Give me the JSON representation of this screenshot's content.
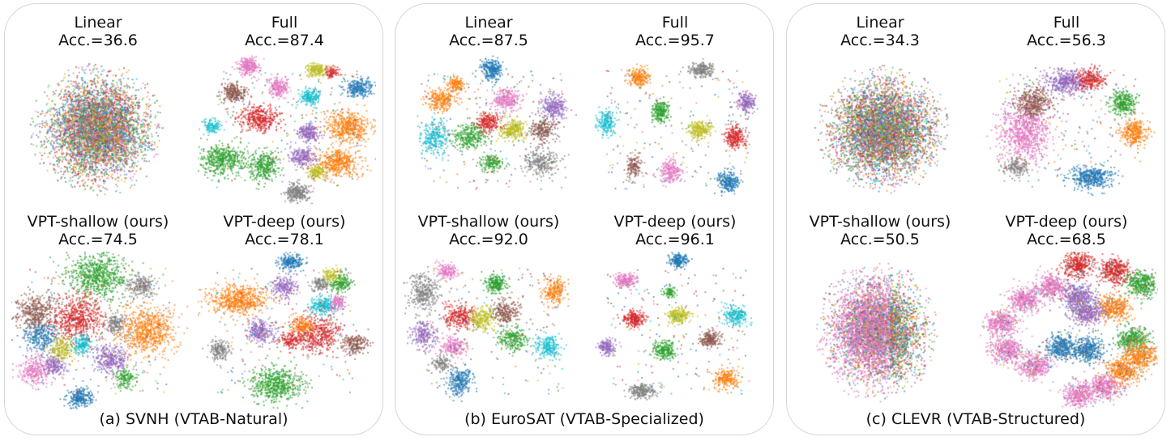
{
  "colors": {
    "blue": "#1f77b4",
    "orange": "#ff7f0e",
    "green": "#2ca02c",
    "red": "#d62728",
    "purple": "#9467bd",
    "brown": "#8c564b",
    "pink": "#e377c2",
    "gray": "#7f7f7f",
    "olive": "#bcbd22",
    "cyan": "#17becf"
  },
  "panels": [
    {
      "caption": "(a) SVNH (VTAB-Natural)",
      "plots": [
        {
          "name": "Linear",
          "acc": "Acc.=36.6"
        },
        {
          "name": "Full",
          "acc": "Acc.=87.4"
        },
        {
          "name": "VPT-shallow (ours)",
          "acc": "Acc.=74.5"
        },
        {
          "name": "VPT-deep (ours)",
          "acc": "Acc.=78.1"
        }
      ]
    },
    {
      "caption": "(b) EuroSAT (VTAB-Specialized)",
      "plots": [
        {
          "name": "Linear",
          "acc": "Acc.=87.5"
        },
        {
          "name": "Full",
          "acc": "Acc.=95.7"
        },
        {
          "name": "VPT-shallow (ours)",
          "acc": "Acc.=92.0"
        },
        {
          "name": "VPT-deep (ours)",
          "acc": "Acc.=96.1"
        }
      ]
    },
    {
      "caption": "(c) CLEVR (VTAB-Structured)",
      "plots": [
        {
          "name": "Linear",
          "acc": "Acc.=34.3"
        },
        {
          "name": "Full",
          "acc": "Acc.=56.3"
        },
        {
          "name": "VPT-shallow (ours)",
          "acc": "Acc.=50.5"
        },
        {
          "name": "VPT-deep (ours)",
          "acc": "Acc.=68.5"
        }
      ]
    }
  ]
}
